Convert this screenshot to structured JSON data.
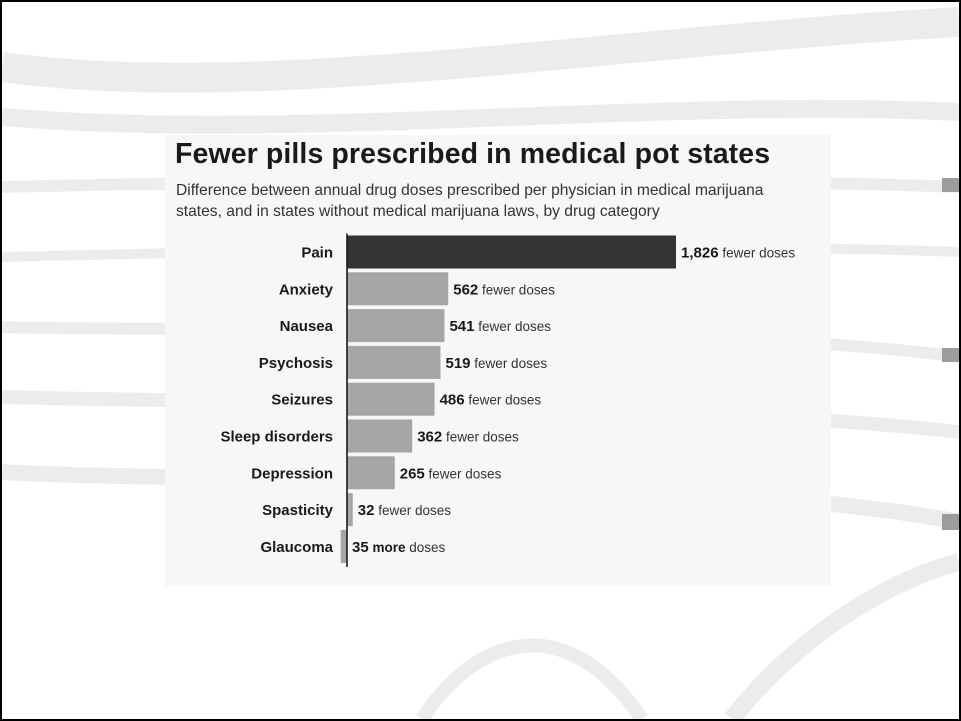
{
  "chart_data": {
    "type": "bar",
    "orientation": "horizontal",
    "title": "Fewer pills prescribed in medical pot states",
    "subtitle_lines": [
      "Difference between annual drug doses prescribed per physician in medical marijuana",
      "states, and in states without medical marijuana laws, by drug category"
    ],
    "categories": [
      "Pain",
      "Anxiety",
      "Nausea",
      "Psychosis",
      "Seizures",
      "Sleep disorders",
      "Depression",
      "Spasticity",
      "Glaucoma"
    ],
    "values": [
      1826,
      562,
      541,
      519,
      486,
      362,
      265,
      32,
      -35
    ],
    "value_labels": [
      "1,826",
      "562",
      "541",
      "519",
      "486",
      "362",
      "265",
      "32",
      "35"
    ],
    "label_suffixes": [
      "fewer doses",
      "fewer doses",
      "fewer doses",
      "fewer doses",
      "fewer doses",
      "fewer doses",
      "fewer doses",
      "fewer doses",
      "more doses"
    ],
    "highlight_category": "Pain",
    "colors": {
      "highlight": "#333333",
      "bar": "#a6a6a6",
      "axis": "#1a1a1a"
    }
  }
}
